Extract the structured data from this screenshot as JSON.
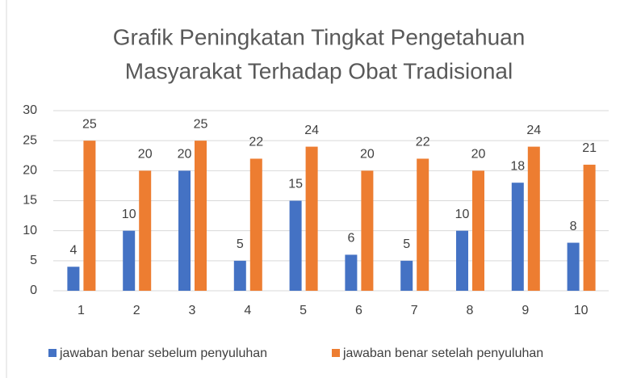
{
  "chart_data": {
    "type": "bar",
    "title": [
      "Grafik Peningkatan Tingkat Pengetahuan",
      "Masyarakat Terhadap Obat Tradisional"
    ],
    "categories": [
      "1",
      "2",
      "3",
      "4",
      "5",
      "6",
      "7",
      "8",
      "9",
      "10"
    ],
    "series": [
      {
        "name": "jawaban benar sebelum penyuluhan",
        "color": "#4472c4",
        "values": [
          4,
          10,
          20,
          5,
          15,
          6,
          5,
          10,
          18,
          8
        ]
      },
      {
        "name": "jawaban benar setelah penyuluhan",
        "color": "#ed7d31",
        "values": [
          25,
          20,
          25,
          22,
          24,
          20,
          22,
          20,
          24,
          21
        ]
      }
    ],
    "ylim": [
      0,
      30
    ],
    "yticks": [
      0,
      5,
      10,
      15,
      20,
      25,
      30
    ],
    "grid": true,
    "legend": "bottom"
  }
}
